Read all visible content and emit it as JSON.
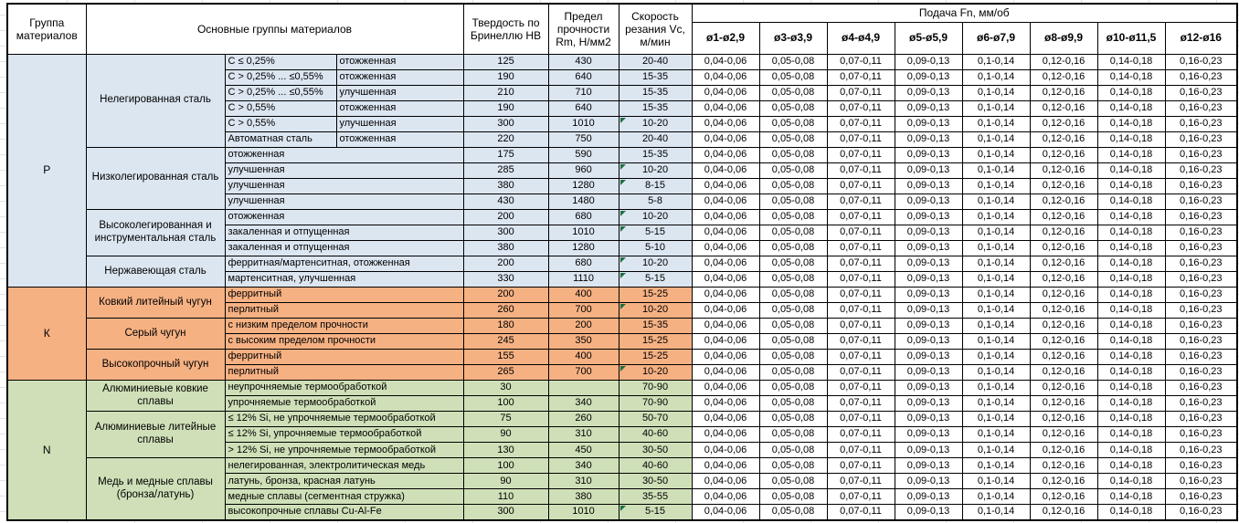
{
  "header": {
    "group_col": "Группа материалов",
    "main_groups_col": "Основные группы материалов",
    "hardness_col": "Твердость по Бринеллю HB",
    "strength_col": "Предел прочности Rm, Н/мм2",
    "speed_col": "Скорость резания Vc, м/мин",
    "feed_title": "Подача Fn, мм/об",
    "feed_cols": [
      "ø1-ø2,9",
      "ø3-ø3,9",
      "ø4-ø4,9",
      "ø5-ø5,9",
      "ø6-ø7,9",
      "ø8-ø9,9",
      "ø10-ø11,5",
      "ø12-ø16"
    ]
  },
  "feed": {
    "values": [
      "0,04-0,06",
      "0,05-0,08",
      "0,07-0,11",
      "0,09-0,13",
      "0,1-0,14",
      "0,12-0,16",
      "0,14-0,18",
      "0,16-0,23"
    ]
  },
  "colors": {
    "group_p": "#dce6f1",
    "group_k": "#f6b183",
    "group_n": "#cfe0b8",
    "flag_triangle": "#1d7044"
  },
  "groups": [
    {
      "code": "P",
      "subgroups": [
        {
          "name": "Нелегированная сталь",
          "rows": [
            {
              "c3": "C ≤ 0,25%",
              "c4": "отожженная",
              "hb": "125",
              "rm": "430",
              "vc": "20-40"
            },
            {
              "c3": "C > 0,25% ... ≤0,55%",
              "c4": "отожженная",
              "hb": "190",
              "rm": "640",
              "vc": "15-35"
            },
            {
              "c3": "C > 0,25% ... ≤0,55%",
              "c4": "улучшенная",
              "hb": "210",
              "rm": "710",
              "vc": "15-35"
            },
            {
              "c3": "C > 0,55%",
              "c4": "отожженная",
              "hb": "190",
              "rm": "640",
              "vc": "15-35"
            },
            {
              "c3": "C > 0,55%",
              "c4": "улучшенная",
              "hb": "300",
              "rm": "1010",
              "vc": "10-20",
              "flag": true
            },
            {
              "c3": "Автоматная сталь",
              "c4": "отожженная",
              "hb": "220",
              "rm": "750",
              "vc": "20-40"
            }
          ]
        },
        {
          "name": "Низколегированная сталь",
          "rows": [
            {
              "c34": "отожженная",
              "hb": "175",
              "rm": "590",
              "vc": "15-35"
            },
            {
              "c34": "улучшенная",
              "hb": "285",
              "rm": "960",
              "vc": "10-20",
              "flag": true
            },
            {
              "c34": "улучшенная",
              "hb": "380",
              "rm": "1280",
              "vc": "8-15",
              "flag": true
            },
            {
              "c34": "улучшенная",
              "hb": "430",
              "rm": "1480",
              "vc": "5-8"
            }
          ]
        },
        {
          "name": "Высоколегированная и инструментальная сталь",
          "rows": [
            {
              "c34": "отожженная",
              "hb": "200",
              "rm": "680",
              "vc": "10-20",
              "flag": true
            },
            {
              "c34": "закаленная и отпущенная",
              "hb": "300",
              "rm": "1010",
              "vc": "5-15",
              "flag": true
            },
            {
              "c34": "закаленная и отпущенная",
              "hb": "380",
              "rm": "1280",
              "vc": "5-10"
            }
          ]
        },
        {
          "name": "Нержавеющая сталь",
          "rows": [
            {
              "c34": "ферритная/мартенситная, отожженная",
              "hb": "200",
              "rm": "680",
              "vc": "10-20",
              "flag": true
            },
            {
              "c34": "мартенситная, улучшенная",
              "hb": "330",
              "rm": "1110",
              "vc": "5-15",
              "flag": true
            }
          ]
        }
      ]
    },
    {
      "code": "К",
      "subgroups": [
        {
          "name": "Ковкий литейный чугун",
          "rows": [
            {
              "c34": "ферритный",
              "hb": "200",
              "rm": "400",
              "vc": "15-25"
            },
            {
              "c34": "перлитный",
              "hb": "260",
              "rm": "700",
              "vc": "10-20",
              "flag": true
            }
          ]
        },
        {
          "name": "Серый чугун",
          "rows": [
            {
              "c34": "с низким пределом прочности",
              "hb": "180",
              "rm": "200",
              "vc": "15-35"
            },
            {
              "c34": "с высоким пределом прочности",
              "hb": "245",
              "rm": "350",
              "vc": "15-25"
            }
          ]
        },
        {
          "name": "Высокопрочный чугун",
          "rows": [
            {
              "c34": "ферритный",
              "hb": "155",
              "rm": "400",
              "vc": "15-25"
            },
            {
              "c34": "перлитный",
              "hb": "265",
              "rm": "700",
              "vc": "10-20",
              "flag": true
            }
          ]
        }
      ]
    },
    {
      "code": "N",
      "subgroups": [
        {
          "name": "Алюминиевые ковкие сплавы",
          "rows": [
            {
              "c34": "неупрочняемые термообработкой",
              "hb": "30",
              "rm": "",
              "vc": "70-90"
            },
            {
              "c34": "упрочняемые термообработкой",
              "hb": "100",
              "rm": "340",
              "vc": "70-90"
            }
          ]
        },
        {
          "name": "Алюминиевые литейные сплавы",
          "rows": [
            {
              "c34": "≤ 12% Si, не упрочняемые термообработкой",
              "hb": "75",
              "rm": "260",
              "vc": "50-70"
            },
            {
              "c34": "≤ 12% Si, упрочняемые термообработкой",
              "hb": "90",
              "rm": "310",
              "vc": "40-60"
            },
            {
              "c34": "> 12% Si, не упрочняемые термообработкой",
              "hb": "130",
              "rm": "450",
              "vc": "30-50"
            }
          ]
        },
        {
          "name": "Медь и медные сплавы (бронза/латунь)",
          "rows": [
            {
              "c34": "нелегированная, электролитическая медь",
              "hb": "100",
              "rm": "340",
              "vc": "40-60"
            },
            {
              "c34": "латунь, бронза, красная латунь",
              "hb": "90",
              "rm": "310",
              "vc": "30-50"
            },
            {
              "c34": "медные сплавы (сегментная стружка)",
              "hb": "110",
              "rm": "380",
              "vc": "35-55"
            },
            {
              "c34": "высокопрочные сплавы Cu-Al-Fe",
              "hb": "300",
              "rm": "1010",
              "vc": "5-15",
              "flag": true
            }
          ]
        }
      ]
    }
  ]
}
